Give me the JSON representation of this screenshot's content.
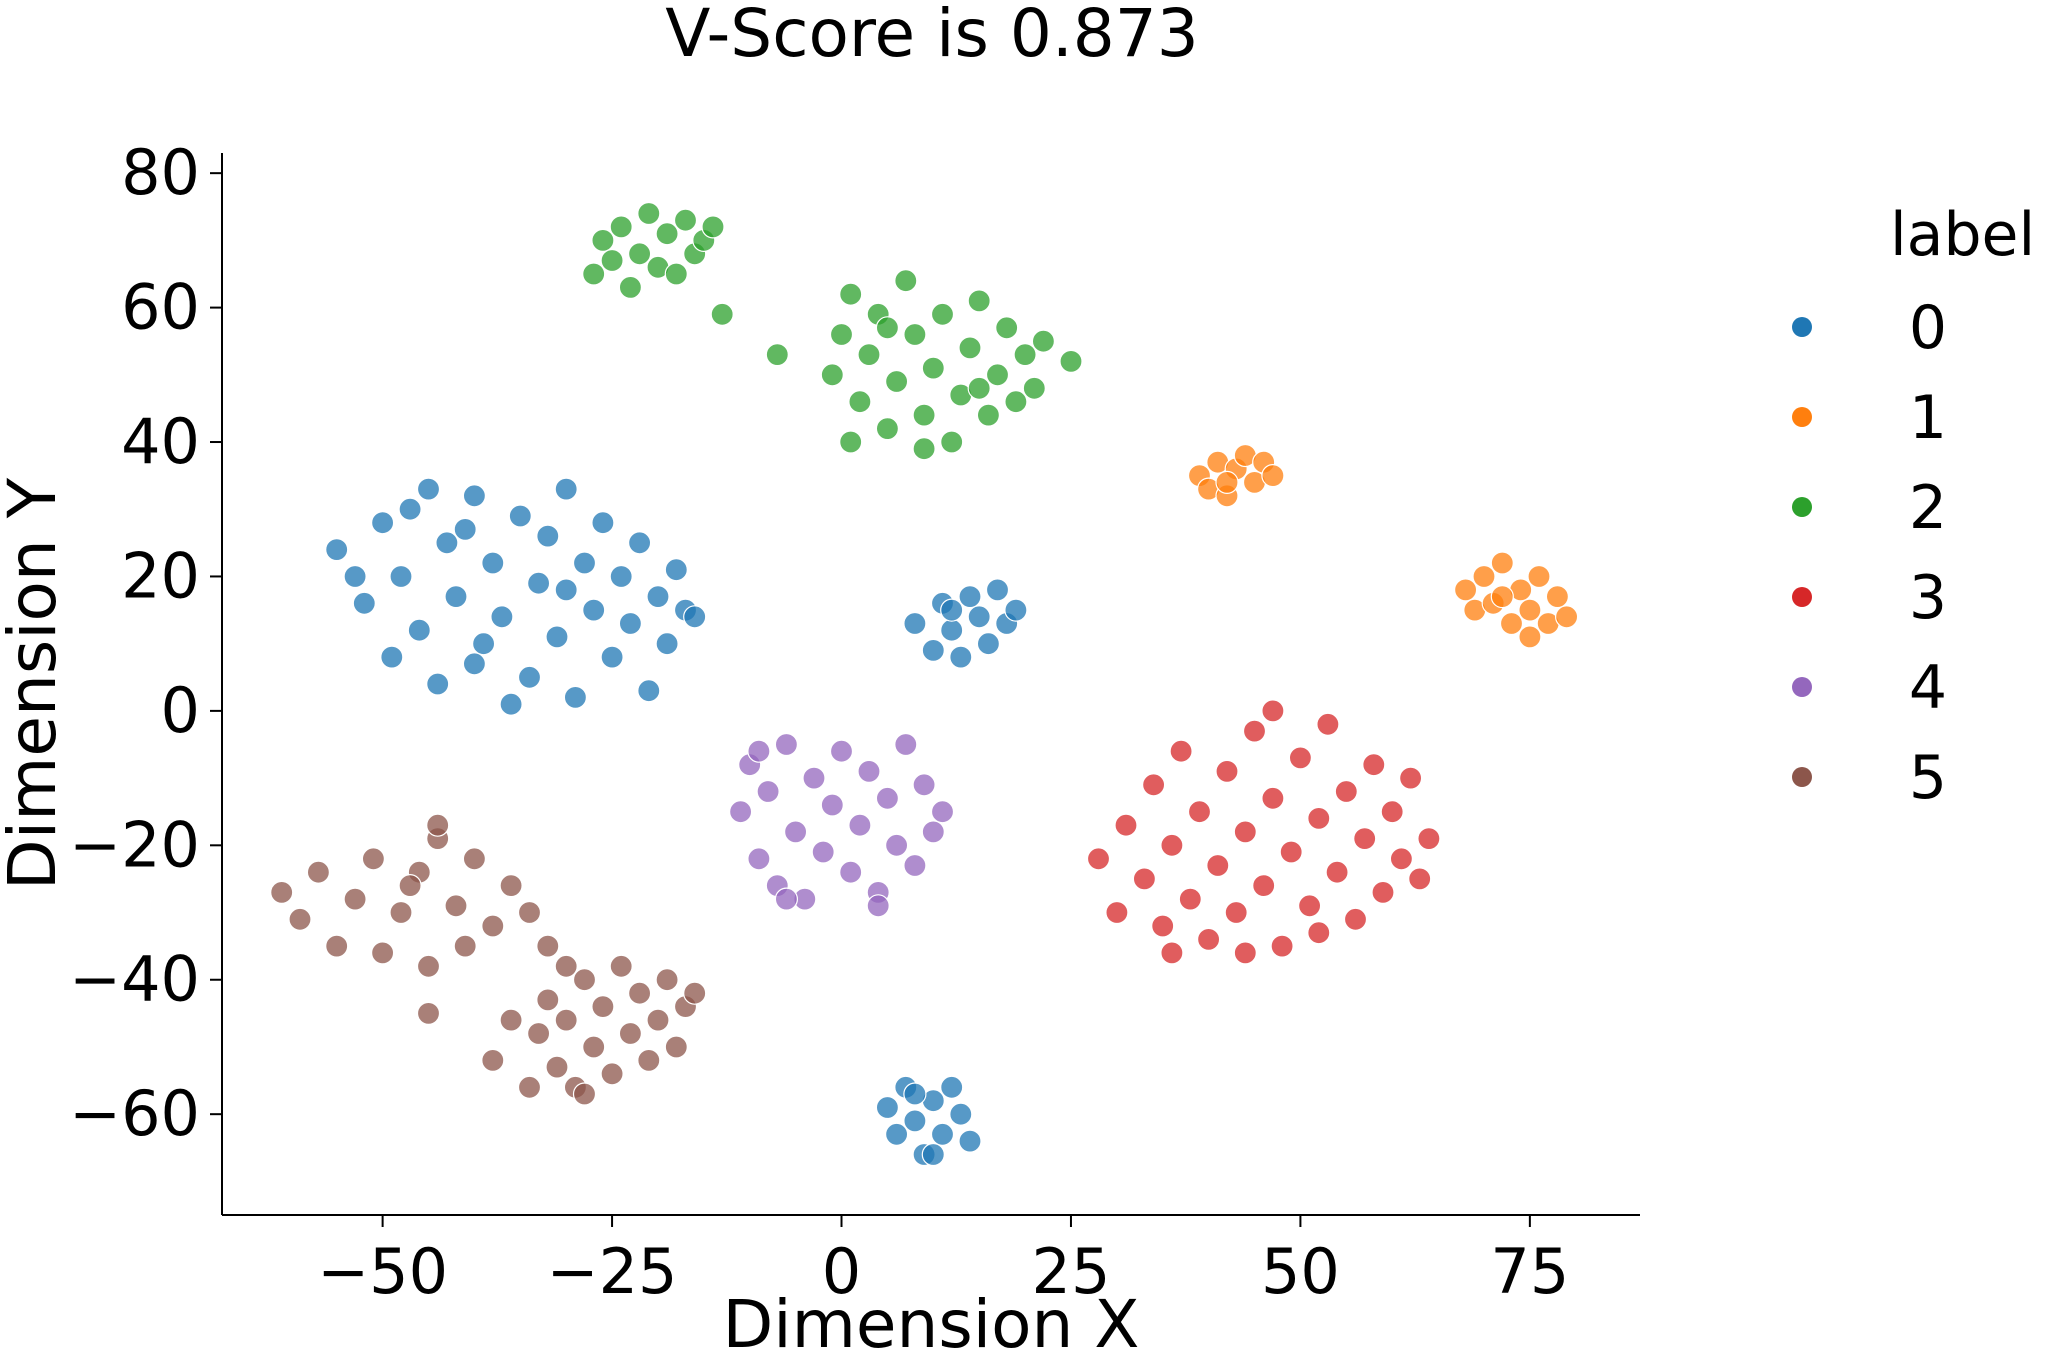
{
  "chart_data": {
    "type": "scatter",
    "title": "V-Score is 0.873",
    "xlabel": "Dimension X",
    "ylabel": "Dimension Y",
    "xlim": [
      -67.5,
      87
    ],
    "ylim": [
      -75,
      83
    ],
    "xticks": [
      {
        "value": -50,
        "label": "−50"
      },
      {
        "value": -25,
        "label": "−25"
      },
      {
        "value": 0,
        "label": "0"
      },
      {
        "value": 25,
        "label": "25"
      },
      {
        "value": 50,
        "label": "50"
      },
      {
        "value": 75,
        "label": "75"
      }
    ],
    "yticks": [
      {
        "value": 80,
        "label": "80"
      },
      {
        "value": 60,
        "label": "60"
      },
      {
        "value": 40,
        "label": "40"
      },
      {
        "value": 20,
        "label": "20"
      },
      {
        "value": 0,
        "label": "0"
      },
      {
        "value": -20,
        "label": "−20"
      },
      {
        "value": -40,
        "label": "−40"
      },
      {
        "value": -60,
        "label": "−60"
      }
    ],
    "grid": false,
    "legend": {
      "title": "label",
      "placement": "outside-right",
      "entries": [
        {
          "label": "0",
          "color": "#1f77b4"
        },
        {
          "label": "1",
          "color": "#ff7f0e"
        },
        {
          "label": "2",
          "color": "#2ca02c"
        },
        {
          "label": "3",
          "color": "#d62728"
        },
        {
          "label": "4",
          "color": "#9467bd"
        },
        {
          "label": "5",
          "color": "#8c564b"
        }
      ]
    },
    "series": [
      {
        "label": "0",
        "color": "#1f77b4",
        "points": [
          [
            -55,
            24
          ],
          [
            -52,
            16
          ],
          [
            -50,
            28
          ],
          [
            -48,
            20
          ],
          [
            -46,
            12
          ],
          [
            -45,
            33
          ],
          [
            -43,
            25
          ],
          [
            -42,
            17
          ],
          [
            -40,
            7
          ],
          [
            -40,
            32
          ],
          [
            -38,
            22
          ],
          [
            -37,
            14
          ],
          [
            -35,
            29
          ],
          [
            -34,
            5
          ],
          [
            -33,
            19
          ],
          [
            -32,
            26
          ],
          [
            -31,
            11
          ],
          [
            -30,
            33
          ],
          [
            -29,
            2
          ],
          [
            -28,
            22
          ],
          [
            -27,
            15
          ],
          [
            -26,
            28
          ],
          [
            -25,
            8
          ],
          [
            -24,
            20
          ],
          [
            -23,
            13
          ],
          [
            -22,
            25
          ],
          [
            -21,
            3
          ],
          [
            -20,
            17
          ],
          [
            -19,
            10
          ],
          [
            -18,
            21
          ],
          [
            -17,
            15
          ],
          [
            -16,
            14
          ],
          [
            -44,
            4
          ],
          [
            -36,
            1
          ],
          [
            -47,
            30
          ],
          [
            -39,
            10
          ],
          [
            -53,
            20
          ],
          [
            -49,
            8
          ],
          [
            -41,
            27
          ],
          [
            -30,
            18
          ],
          [
            8,
            13
          ],
          [
            10,
            9
          ],
          [
            11,
            16
          ],
          [
            12,
            12
          ],
          [
            13,
            8
          ],
          [
            14,
            17
          ],
          [
            15,
            14
          ],
          [
            16,
            10
          ],
          [
            17,
            18
          ],
          [
            18,
            13
          ],
          [
            19,
            15
          ],
          [
            12,
            15
          ],
          [
            5,
            -59
          ],
          [
            6,
            -63
          ],
          [
            7,
            -56
          ],
          [
            8,
            -61
          ],
          [
            9,
            -66
          ],
          [
            10,
            -58
          ],
          [
            11,
            -63
          ],
          [
            12,
            -56
          ],
          [
            13,
            -60
          ],
          [
            14,
            -64
          ],
          [
            8,
            -57
          ],
          [
            10,
            -66
          ]
        ]
      },
      {
        "label": "1",
        "color": "#ff7f0e",
        "points": [
          [
            39,
            35
          ],
          [
            40,
            33
          ],
          [
            41,
            37
          ],
          [
            42,
            32
          ],
          [
            43,
            36
          ],
          [
            44,
            38
          ],
          [
            45,
            34
          ],
          [
            46,
            37
          ],
          [
            47,
            35
          ],
          [
            42,
            34
          ],
          [
            68,
            18
          ],
          [
            69,
            15
          ],
          [
            70,
            20
          ],
          [
            71,
            16
          ],
          [
            72,
            22
          ],
          [
            73,
            13
          ],
          [
            74,
            18
          ],
          [
            75,
            15
          ],
          [
            76,
            20
          ],
          [
            77,
            13
          ],
          [
            78,
            17
          ],
          [
            79,
            14
          ],
          [
            72,
            17
          ],
          [
            75,
            11
          ]
        ]
      },
      {
        "label": "2",
        "color": "#2ca02c",
        "points": [
          [
            -27,
            65
          ],
          [
            -26,
            70
          ],
          [
            -25,
            67
          ],
          [
            -24,
            72
          ],
          [
            -23,
            63
          ],
          [
            -22,
            68
          ],
          [
            -21,
            74
          ],
          [
            -20,
            66
          ],
          [
            -19,
            71
          ],
          [
            -18,
            65
          ],
          [
            -17,
            73
          ],
          [
            -16,
            68
          ],
          [
            -15,
            70
          ],
          [
            -14,
            72
          ],
          [
            -13,
            59
          ],
          [
            -7,
            53
          ],
          [
            -1,
            50
          ],
          [
            0,
            56
          ],
          [
            1,
            40
          ],
          [
            1,
            62
          ],
          [
            2,
            46
          ],
          [
            3,
            53
          ],
          [
            4,
            59
          ],
          [
            5,
            42
          ],
          [
            6,
            49
          ],
          [
            7,
            64
          ],
          [
            8,
            56
          ],
          [
            9,
            44
          ],
          [
            10,
            51
          ],
          [
            11,
            59
          ],
          [
            12,
            40
          ],
          [
            13,
            47
          ],
          [
            14,
            54
          ],
          [
            15,
            61
          ],
          [
            16,
            44
          ],
          [
            17,
            50
          ],
          [
            18,
            57
          ],
          [
            19,
            46
          ],
          [
            20,
            53
          ],
          [
            21,
            48
          ],
          [
            22,
            55
          ],
          [
            25,
            52
          ],
          [
            5,
            57
          ],
          [
            15,
            48
          ],
          [
            9,
            39
          ]
        ]
      },
      {
        "label": "3",
        "color": "#d62728",
        "points": [
          [
            28,
            -22
          ],
          [
            30,
            -30
          ],
          [
            31,
            -17
          ],
          [
            33,
            -25
          ],
          [
            34,
            -11
          ],
          [
            35,
            -32
          ],
          [
            36,
            -20
          ],
          [
            37,
            -6
          ],
          [
            38,
            -28
          ],
          [
            39,
            -15
          ],
          [
            40,
            -34
          ],
          [
            41,
            -23
          ],
          [
            42,
            -9
          ],
          [
            43,
            -30
          ],
          [
            44,
            -18
          ],
          [
            45,
            -3
          ],
          [
            46,
            -26
          ],
          [
            47,
            -13
          ],
          [
            48,
            -35
          ],
          [
            49,
            -21
          ],
          [
            50,
            -7
          ],
          [
            51,
            -29
          ],
          [
            52,
            -16
          ],
          [
            53,
            -2
          ],
          [
            54,
            -24
          ],
          [
            55,
            -12
          ],
          [
            56,
            -31
          ],
          [
            57,
            -19
          ],
          [
            58,
            -8
          ],
          [
            59,
            -27
          ],
          [
            60,
            -15
          ],
          [
            61,
            -22
          ],
          [
            62,
            -10
          ],
          [
            63,
            -25
          ],
          [
            64,
            -19
          ],
          [
            44,
            -36
          ],
          [
            36,
            -36
          ],
          [
            52,
            -33
          ],
          [
            47,
            0
          ]
        ]
      },
      {
        "label": "4",
        "color": "#9467bd",
        "points": [
          [
            -11,
            -15
          ],
          [
            -10,
            -8
          ],
          [
            -9,
            -22
          ],
          [
            -8,
            -12
          ],
          [
            -7,
            -26
          ],
          [
            -6,
            -5
          ],
          [
            -5,
            -18
          ],
          [
            -4,
            -28
          ],
          [
            -3,
            -10
          ],
          [
            -2,
            -21
          ],
          [
            -1,
            -14
          ],
          [
            0,
            -6
          ],
          [
            1,
            -24
          ],
          [
            2,
            -17
          ],
          [
            3,
            -9
          ],
          [
            4,
            -27
          ],
          [
            5,
            -13
          ],
          [
            6,
            -20
          ],
          [
            7,
            -5
          ],
          [
            8,
            -23
          ],
          [
            9,
            -11
          ],
          [
            10,
            -18
          ],
          [
            11,
            -15
          ],
          [
            -6,
            -28
          ],
          [
            4,
            -29
          ],
          [
            -9,
            -6
          ]
        ]
      },
      {
        "label": "5",
        "color": "#8c564b",
        "points": [
          [
            -61,
            -27
          ],
          [
            -59,
            -31
          ],
          [
            -57,
            -24
          ],
          [
            -55,
            -35
          ],
          [
            -53,
            -28
          ],
          [
            -51,
            -22
          ],
          [
            -50,
            -36
          ],
          [
            -48,
            -30
          ],
          [
            -46,
            -24
          ],
          [
            -45,
            -38
          ],
          [
            -44,
            -19
          ],
          [
            -42,
            -29
          ],
          [
            -41,
            -35
          ],
          [
            -40,
            -22
          ],
          [
            -38,
            -32
          ],
          [
            -36,
            -26
          ],
          [
            -34,
            -30
          ],
          [
            -32,
            -35
          ],
          [
            -44,
            -17
          ],
          [
            -47,
            -26
          ],
          [
            -33,
            -48
          ],
          [
            -32,
            -43
          ],
          [
            -31,
            -53
          ],
          [
            -30,
            -46
          ],
          [
            -29,
            -56
          ],
          [
            -28,
            -40
          ],
          [
            -27,
            -50
          ],
          [
            -26,
            -44
          ],
          [
            -25,
            -54
          ],
          [
            -24,
            -38
          ],
          [
            -23,
            -48
          ],
          [
            -22,
            -42
          ],
          [
            -21,
            -52
          ],
          [
            -20,
            -46
          ],
          [
            -19,
            -40
          ],
          [
            -18,
            -50
          ],
          [
            -17,
            -44
          ],
          [
            -36,
            -46
          ],
          [
            -38,
            -52
          ],
          [
            -34,
            -56
          ],
          [
            -28,
            -57
          ],
          [
            -45,
            -45
          ],
          [
            -30,
            -38
          ],
          [
            -16,
            -42
          ]
        ]
      }
    ]
  }
}
